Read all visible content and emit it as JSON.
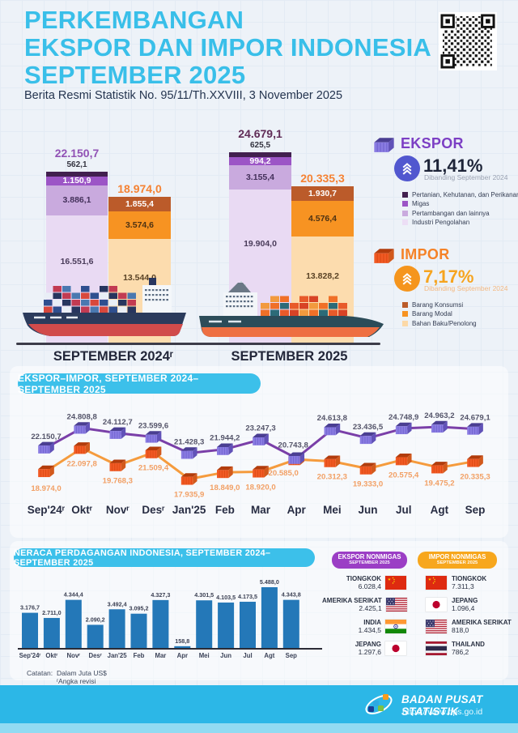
{
  "header": {
    "title_lines": [
      "PERKEMBANGAN",
      "EKSPOR DAN IMPOR INDONESIA",
      "SEPTEMBER 2025"
    ],
    "subtitle": "Berita Resmi Statistik No. 95/11/Th.XXVIII, 3 November 2025"
  },
  "summary": {
    "ekspor": {
      "label": "EKSPOR",
      "pct": "11,41%",
      "compare": "Dibanding September 2024",
      "accent": "#7c3fc4",
      "circle": "#5157cf",
      "pct_color": "#1d2438",
      "compare_color": "#9aa2b2",
      "legend": [
        {
          "label": "Pertanian, Kehutanan, dan Perikanan",
          "color": "#42204f"
        },
        {
          "label": "Migas",
          "color": "#9c55c6"
        },
        {
          "label": "Pertambangan dan lainnya",
          "color": "#c9aade"
        },
        {
          "label": "Industri Pengolahan",
          "color": "#ecdef5"
        }
      ]
    },
    "impor": {
      "label": "IMPOR",
      "pct": "7,17%",
      "compare": "Dibanding September 2024",
      "accent": "#f58227",
      "circle": "#f5951d",
      "pct_color": "#f6a41f",
      "compare_color": "#f3b983",
      "legend": [
        {
          "label": "Barang Konsumsi",
          "color": "#bb5b2a"
        },
        {
          "label": "Barang Modal",
          "color": "#f79322"
        },
        {
          "label": "Bahan Baku/Penolong",
          "color": "#fcd9a8"
        }
      ]
    }
  },
  "chart_data": [
    {
      "id": "ekspor-impor-stacked",
      "type": "bar",
      "subtype": "grouped-stacked",
      "unit": "Juta US$",
      "groups": [
        {
          "label": "SEPTEMBER 2024ʳ",
          "bars": [
            {
              "series": "Ekspor",
              "total": 22150.7,
              "total_label": "22.150,7",
              "total_color": "#9152b5",
              "segments": [
                {
                  "name": "Pertanian, Kehutanan, dan Perikanan",
                  "value": 562.1,
                  "label": "562,1",
                  "color": "#42204f",
                  "label_outside": true
                },
                {
                  "name": "Migas",
                  "value": 1150.9,
                  "label": "1.150,9",
                  "color": "#9c55c6",
                  "text": "#ffffff"
                },
                {
                  "name": "Pertambangan dan lainnya",
                  "value": 3886.1,
                  "label": "3.886,1",
                  "color": "#c9aade",
                  "text": "#43305a"
                },
                {
                  "name": "Industri Pengolahan",
                  "value": 16551.6,
                  "label": "16.551,6",
                  "color": "#e9daf3",
                  "text": "#4a3c5a",
                  "label_upper": true
                }
              ]
            },
            {
              "series": "Impor",
              "total": 18974.0,
              "total_label": "18.974,0",
              "total_color": "#f58233",
              "segments": [
                {
                  "name": "Barang Konsumsi",
                  "value": 1855.4,
                  "label": "1.855,4",
                  "color": "#bb5b2a",
                  "text": "#ffffff"
                },
                {
                  "name": "Barang Modal",
                  "value": 3574.6,
                  "label": "3.574,6",
                  "color": "#f79322",
                  "text": "#4d3213"
                },
                {
                  "name": "Bahan Baku/Penolong",
                  "value": 13544.0,
                  "label": "13.544,0",
                  "color": "#fcdcae",
                  "text": "#5a4326",
                  "label_upper": true
                }
              ]
            }
          ]
        },
        {
          "label": "SEPTEMBER 2025",
          "bars": [
            {
              "series": "Ekspor",
              "total": 24679.1,
              "total_label": "24.679,1",
              "total_color": "#5f2b56",
              "segments": [
                {
                  "name": "Pertanian, Kehutanan, dan Perikanan",
                  "value": 625.5,
                  "label": "625,5",
                  "color": "#42204f",
                  "label_outside": true
                },
                {
                  "name": "Migas",
                  "value": 994.2,
                  "label": "994,2",
                  "color": "#9c55c6",
                  "text": "#ffffff"
                },
                {
                  "name": "Pertambangan dan lainnya",
                  "value": 3155.4,
                  "label": "3.155,4",
                  "color": "#c9aade",
                  "text": "#43305a"
                },
                {
                  "name": "Industri Pengolahan",
                  "value": 19904.0,
                  "label": "19.904,0",
                  "color": "#e9daf3",
                  "text": "#4a3c5a",
                  "label_upper": true
                }
              ]
            },
            {
              "series": "Impor",
              "total": 20335.3,
              "total_label": "20.335,3",
              "total_color": "#f58233",
              "segments": [
                {
                  "name": "Barang Konsumsi",
                  "value": 1930.7,
                  "label": "1.930,7",
                  "color": "#bb5b2a",
                  "text": "#ffffff"
                },
                {
                  "name": "Barang Modal",
                  "value": 4576.4,
                  "label": "4.576,4",
                  "color": "#f79322",
                  "text": "#4d3213"
                },
                {
                  "name": "Bahan Baku/Penolong",
                  "value": 13828.2,
                  "label": "13.828,2",
                  "color": "#fcdcae",
                  "text": "#5a4326",
                  "label_upper": true
                }
              ]
            }
          ]
        }
      ]
    },
    {
      "id": "ekspor-impor-line",
      "type": "line",
      "title": "EKSPOR–IMPOR, SEPTEMBER 2024–SEPTEMBER 2025",
      "categories": [
        "Sep'24ʳ",
        "Oktʳ",
        "Novʳ",
        "Desʳ",
        "Jan'25",
        "Feb",
        "Mar",
        "Apr",
        "Mei",
        "Jun",
        "Jul",
        "Agt",
        "Sep"
      ],
      "series": [
        {
          "name": "Ekspor",
          "line_color": "#7a3fa8",
          "values": [
            22150.7,
            24808.8,
            24112.7,
            23599.6,
            21428.3,
            21944.2,
            23247.3,
            20743.8,
            24613.8,
            23436.5,
            24748.9,
            24963.2,
            24679.1
          ],
          "labels": [
            "22.150,7",
            "24.808,8",
            "24.112,7",
            "23.599,6",
            "21.428,3",
            "21.944,2",
            "23.247,3",
            "20.743,8",
            "24.613,8",
            "23.436,5",
            "24.748,9",
            "24.963,2",
            "24.679,1"
          ]
        },
        {
          "name": "Impor",
          "line_color": "#f59b3d",
          "values": [
            18974.0,
            22097.8,
            19768.3,
            21509.4,
            17935.9,
            18849.0,
            18920.0,
            20585.0,
            20312.3,
            19333.0,
            20575.4,
            19475.2,
            20335.3
          ],
          "labels": [
            "18.974,0",
            "22.097,8",
            "19.768,3",
            "21.509,4",
            "17.935,9",
            "18.849,0",
            "18.920,0",
            "20.585,0",
            "20.312,3",
            "19.333,0",
            "20.575,4",
            "19.475,2",
            "20.335,3"
          ]
        }
      ],
      "legend_position": "none",
      "grid": false
    },
    {
      "id": "neraca-perdagangan",
      "type": "bar",
      "title": "NERACA PERDAGANGAN INDONESIA, SEPTEMBER 2024–SEPTEMBER 2025",
      "categories": [
        "Sep'24ʳ",
        "Oktʳ",
        "Novʳ",
        "Desʳ",
        "Jan'25",
        "Feb",
        "Mar",
        "Apr",
        "Mei",
        "Jun",
        "Jul",
        "Agt",
        "Sep"
      ],
      "values": [
        3176.7,
        2711.0,
        4344.4,
        2090.2,
        3492.4,
        3095.2,
        4327.3,
        158.8,
        4301.5,
        4103.5,
        4173.5,
        5488.0,
        4343.8
      ],
      "labels": [
        "3.176,7",
        "2.711,0",
        "4.344,4",
        "2.090,2",
        "3.492,4",
        "3.095,2",
        "4.327,3",
        "158,8",
        "4.301,5",
        "4.103,5",
        "4.173,5",
        "5.488,0",
        "4.343,8"
      ],
      "bar_color": "#2478b8",
      "unit": "Juta US$"
    }
  ],
  "nonmigas": {
    "ekspor": {
      "title": "EKSPOR NONMIGAS",
      "subtitle": "SEPTEMBER 2025",
      "pill_color": "#9b3ec5",
      "items": [
        {
          "country": "TIONGKOK",
          "value": "6.028,4",
          "flag": "china"
        },
        {
          "country": "AMERIKA SERIKAT",
          "value": "2.425,1",
          "flag": "usa"
        },
        {
          "country": "INDIA",
          "value": "1.434,5",
          "flag": "india"
        },
        {
          "country": "JEPANG",
          "value": "1.297,6",
          "flag": "japan"
        }
      ]
    },
    "impor": {
      "title": "IMPOR NONMIGAS",
      "subtitle": "SEPTEMBER 2025",
      "pill_color": "#f7a71d",
      "items": [
        {
          "country": "TIONGKOK",
          "value": "7.311,3",
          "flag": "china"
        },
        {
          "country": "JEPANG",
          "value": "1.096,4",
          "flag": "japan"
        },
        {
          "country": "AMERIKA SERIKAT",
          "value": "818,0",
          "flag": "usa"
        },
        {
          "country": "THAILAND",
          "value": "786,2",
          "flag": "thailand"
        }
      ]
    }
  },
  "notes": {
    "label": "Catatan:",
    "lines": [
      "Dalam Juta US$",
      "ʳAngka revisi"
    ]
  },
  "footer": {
    "org": "BADAN PUSAT STATISTIK",
    "url": "https://www.bps.go.id"
  }
}
